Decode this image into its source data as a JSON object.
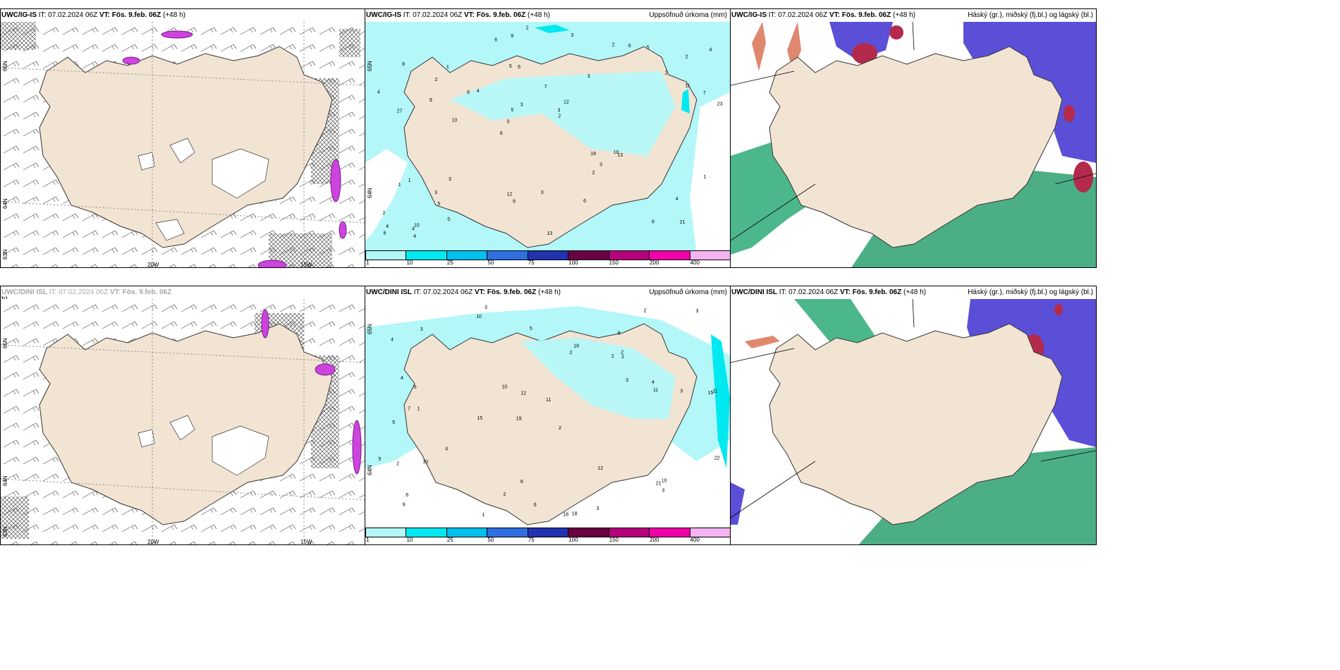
{
  "panels": [
    {
      "id": "ig-wind",
      "model": "UWC/IG-IS",
      "it_label": "IT:",
      "it": "07.02.2024 06Z",
      "vt_label": "VT:",
      "vt": "Fös. 9.feb. 06Z",
      "lead": "(+48 h)",
      "right_title": "",
      "lat_labels": [
        "65N",
        "64N",
        "63N"
      ],
      "lon_labels": [
        "20W",
        "15W"
      ]
    },
    {
      "id": "ig-precip",
      "model": "UWC/IG-IS",
      "it_label": "IT:",
      "it": "07.02.2024 06Z",
      "vt_label": "VT:",
      "vt": "Fös. 9.feb. 06Z",
      "lead": "(+48 h)",
      "right_title": "Uppsöfnuð úrkoma (mm)",
      "lat_labels": [
        "65N",
        "64N"
      ],
      "lon_labels": []
    },
    {
      "id": "ig-cloud",
      "model": "UWC/IG-IS",
      "it_label": "IT:",
      "it": "07.02.2024 06Z",
      "vt_label": "VT:",
      "vt": "Fös. 9.feb. 06Z",
      "lead": "(+48 h)",
      "right_title": "Háský (gr.), miðský (fj.bl.) og lágský (bl.)",
      "lat_labels": [],
      "lon_labels": []
    },
    {
      "id": "dini-wind",
      "model": "UWC/DINI ISL",
      "it_label": "IT:",
      "it": "07.02.2024 06Z",
      "vt_label": "VT:",
      "vt": "Fös. 9.feb. 06Z",
      "lead": "h)",
      "right_title": "",
      "lat_labels": [
        "65N",
        "64N",
        "63N"
      ],
      "lon_labels": [
        "20W",
        "15W"
      ]
    },
    {
      "id": "dini-precip",
      "model": "UWC/DINI ISL",
      "it_label": "IT:",
      "it": "07.02.2024 06Z",
      "vt_label": "VT:",
      "vt": "Fös. 9.feb. 06Z",
      "lead": "(+48 h)",
      "right_title": "Uppsöfnuð úrkoma (mm)",
      "lat_labels": [
        "65N",
        "64N"
      ],
      "lon_labels": []
    },
    {
      "id": "dini-cloud",
      "model": "UWC/DINI ISL",
      "it_label": "IT:",
      "it": "07.02.2024 06Z",
      "vt_label": "VT:",
      "vt": "Fös. 9.feb. 06Z",
      "lead": "(+48 h)",
      "right_title": "Háský (gr.), miðský (fj.bl.) og lágský (bl.)",
      "lat_labels": [],
      "lon_labels": []
    }
  ],
  "colorbar": {
    "ticks": [
      "1",
      "10",
      "25",
      "50",
      "75",
      "100",
      "150",
      "200",
      "400"
    ],
    "colors": [
      "#b3f7f9",
      "#00e9f0",
      "#00c0ee",
      "#2f6fe0",
      "#2233b0",
      "#6a0042",
      "#b5007b",
      "#f000a8",
      "#f5b2f0"
    ]
  },
  "precip_labels": {
    "ig": [
      "21",
      "27",
      "2",
      "6",
      "3",
      "10",
      "5",
      "7",
      "1",
      "4",
      "2",
      "5",
      "6",
      "12",
      "13",
      "8",
      "9",
      "23",
      "19",
      "11",
      "3",
      "12",
      "5",
      "1",
      "2",
      "3",
      "6",
      "4",
      "10",
      "13",
      "6",
      "9",
      "2",
      "5",
      "7",
      "3",
      "4",
      "6",
      "2",
      "1",
      "2",
      "4",
      "3",
      "6",
      "3",
      "4",
      "6",
      "3",
      "5",
      "2",
      "10",
      "4",
      "2",
      "6",
      "4",
      "3",
      "6",
      "3",
      "1"
    ],
    "dini": [
      "3",
      "8",
      "15",
      "19",
      "2",
      "1",
      "4",
      "2",
      "5",
      "2",
      "11",
      "9",
      "10",
      "15",
      "18",
      "18",
      "8",
      "2",
      "3",
      "4",
      "6",
      "7",
      "11",
      "3",
      "5",
      "4",
      "12",
      "11",
      "10",
      "2",
      "21",
      "18",
      "10",
      "10",
      "12",
      "22",
      "4",
      "2",
      "3",
      "5",
      "6",
      "1",
      "3",
      "3",
      "6",
      "2",
      "3",
      "2"
    ]
  },
  "colors": {
    "land": "#f2e4d3",
    "precip_light": "#b3f7f9",
    "precip_mid": "#00e9f0",
    "cloud_high": "#5b4fd8",
    "cloud_mid": "#1f9a66",
    "cloud_low": "#b32a4a",
    "convection": "#cc44dd"
  }
}
